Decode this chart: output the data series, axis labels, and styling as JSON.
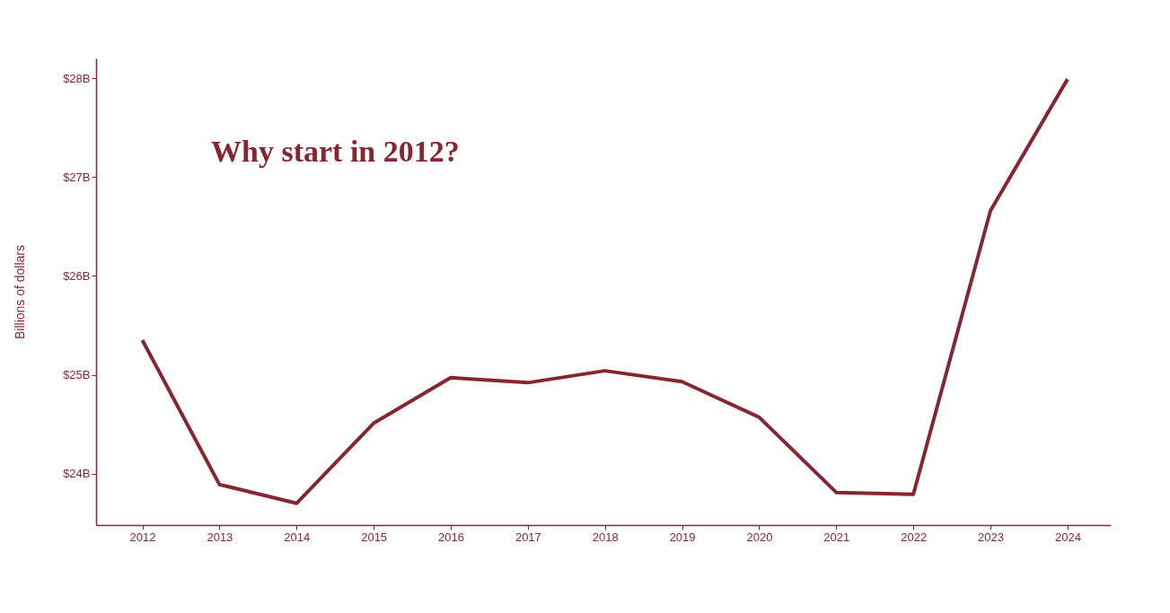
{
  "chart_data": {
    "type": "line",
    "ylabel": "Billions of dollars",
    "annotations": [
      "Why start in 2012?"
    ],
    "x": [
      2012,
      2013,
      2014,
      2015,
      2016,
      2017,
      2018,
      2019,
      2020,
      2021,
      2022,
      2023,
      2024
    ],
    "series": [
      {
        "color": "#862633",
        "values": [
          25.35,
          23.89,
          23.7,
          24.51,
          24.97,
          24.92,
          25.04,
          24.93,
          24.57,
          23.81,
          23.79,
          26.66,
          27.99
        ]
      }
    ],
    "xlim": [
      2011.4,
      2024.56
    ],
    "xticks": [
      2012,
      2013,
      2014,
      2015,
      2016,
      2017,
      2018,
      2019,
      2020,
      2021,
      2022,
      2023,
      2024
    ],
    "ylim": [
      23.48,
      28.2
    ],
    "yticks": [
      {
        "value": 24,
        "label": "$24B"
      },
      {
        "value": 25,
        "label": "$25B"
      },
      {
        "value": 26,
        "label": "$26B"
      },
      {
        "value": 27,
        "label": "$27B"
      },
      {
        "value": 28,
        "label": "$28B"
      }
    ],
    "grid": false,
    "marker": "none",
    "line_style": "solid"
  }
}
